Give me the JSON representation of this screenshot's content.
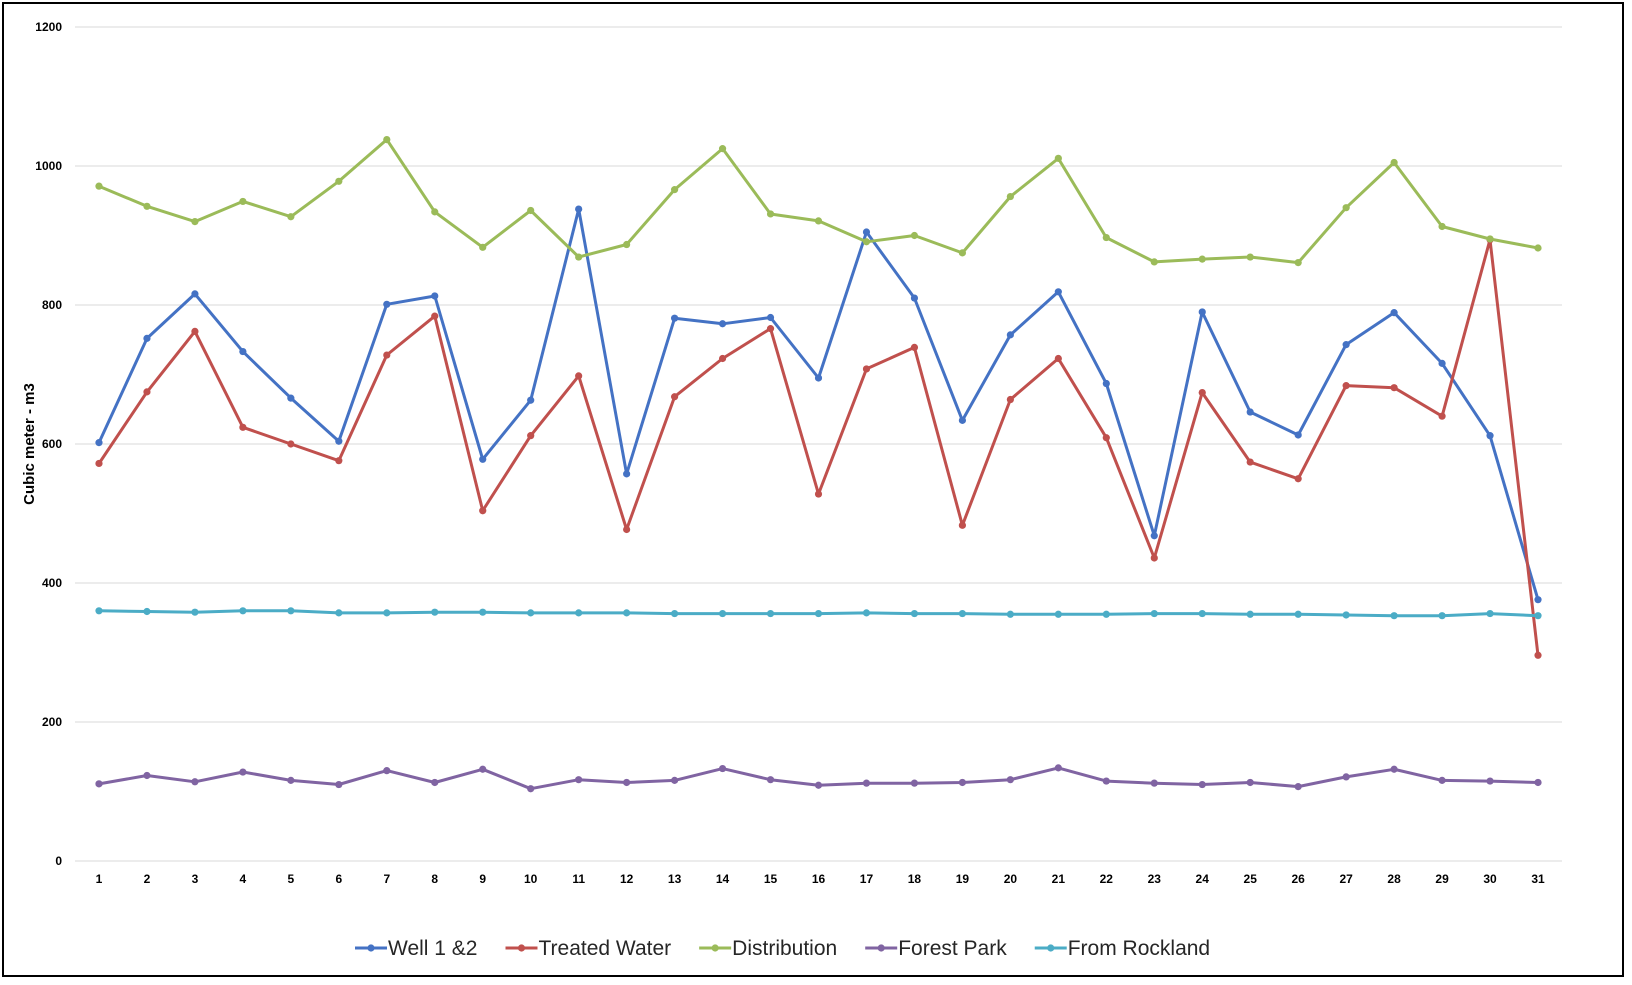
{
  "chart_data": {
    "type": "line",
    "title": "",
    "xlabel": "",
    "ylabel": "Cubic meter - m3",
    "ylim": [
      0,
      1200
    ],
    "yticks": [
      0,
      200,
      400,
      600,
      800,
      1000,
      1200
    ],
    "grid": true,
    "legend_position": "bottom",
    "categories": [
      "1",
      "2",
      "3",
      "4",
      "5",
      "6",
      "7",
      "8",
      "9",
      "10",
      "11",
      "12",
      "13",
      "14",
      "15",
      "16",
      "17",
      "18",
      "19",
      "20",
      "21",
      "22",
      "23",
      "24",
      "25",
      "26",
      "27",
      "28",
      "29",
      "30",
      "31"
    ],
    "series": [
      {
        "name": "Well 1 &2",
        "color": "#4472C4",
        "values": [
          602,
          752,
          816,
          733,
          666,
          604,
          801,
          813,
          578,
          663,
          938,
          557,
          781,
          773,
          782,
          695,
          905,
          810,
          634,
          757,
          819,
          687,
          468,
          790,
          646,
          613,
          743,
          789,
          716,
          612,
          376
        ]
      },
      {
        "name": "Treated Water",
        "color": "#C0504D",
        "values": [
          572,
          675,
          762,
          624,
          600,
          576,
          728,
          784,
          504,
          612,
          698,
          477,
          668,
          723,
          766,
          528,
          708,
          739,
          483,
          664,
          723,
          609,
          436,
          674,
          574,
          550,
          684,
          681,
          640,
          894,
          296
        ]
      },
      {
        "name": "Distribution",
        "color": "#9BBB59",
        "values": [
          971,
          942,
          920,
          949,
          927,
          978,
          1038,
          934,
          883,
          936,
          869,
          887,
          966,
          1025,
          931,
          921,
          891,
          900,
          875,
          956,
          1011,
          897,
          862,
          866,
          869,
          861,
          940,
          1005,
          913,
          895,
          882
        ]
      },
      {
        "name": "Forest Park",
        "color": "#8064A2",
        "values": [
          111,
          123,
          114,
          128,
          116,
          110,
          130,
          113,
          132,
          104,
          117,
          113,
          116,
          133,
          117,
          109,
          112,
          112,
          113,
          117,
          134,
          115,
          112,
          110,
          113,
          107,
          121,
          132,
          116,
          115,
          113
        ]
      },
      {
        "name": "From Rockland",
        "color": "#4BACC6",
        "values": [
          360,
          359,
          358,
          360,
          360,
          357,
          357,
          358,
          358,
          357,
          357,
          357,
          356,
          356,
          356,
          356,
          357,
          356,
          356,
          355,
          355,
          355,
          356,
          356,
          355,
          355,
          354,
          353,
          353,
          356,
          353
        ]
      }
    ]
  }
}
